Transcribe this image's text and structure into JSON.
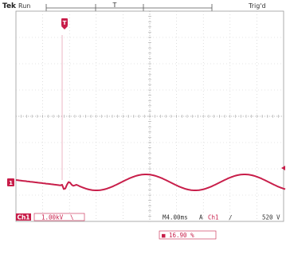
{
  "header": {
    "brand": "Tek",
    "run_state": "Run",
    "trigger_status": "Trig'd"
  },
  "markers": {
    "trigger_position": "T",
    "channel_ground": "1"
  },
  "readout": {
    "channel_badge": "Ch1",
    "channel_scale": "1.00kV",
    "timebase": "M4.00ms",
    "trigger_mode": "A",
    "trigger_source": "Ch1",
    "trigger_slope": "∕",
    "trigger_level": "520 V",
    "position_indicator": "■",
    "position_value": "16.90 %"
  },
  "colors": {
    "trace": "#c81e4a",
    "grid": "#c9c9c9",
    "frame": "#9a9a9a",
    "marker_ground": "#c81e4a"
  }
}
